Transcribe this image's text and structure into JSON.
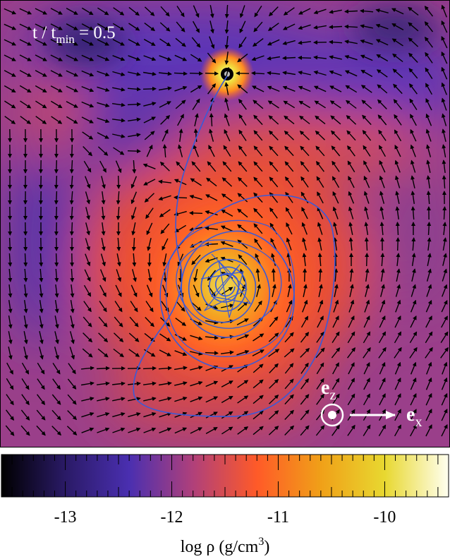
{
  "panel": {
    "time_label": "t / t",
    "time_sub": "min",
    "time_value": " = 0.5",
    "axis_z": "e",
    "axis_z_sub": "z",
    "axis_x": "e",
    "axis_x_sub": "x"
  },
  "colorbar": {
    "range": [
      -13.6,
      -9.4
    ],
    "ticks": [
      -13,
      -12,
      -11,
      -10
    ],
    "tick_labels": [
      "-13",
      "-12",
      "-11",
      "-10"
    ],
    "label_main": "log ρ (g/cm",
    "label_sup": "3",
    "label_end": ")",
    "colormap": [
      "#000000",
      "#2a1a66",
      "#4a2fb0",
      "#b0407a",
      "#ff5a28",
      "#f0a018",
      "#e8d830",
      "#fffff0"
    ]
  }
}
